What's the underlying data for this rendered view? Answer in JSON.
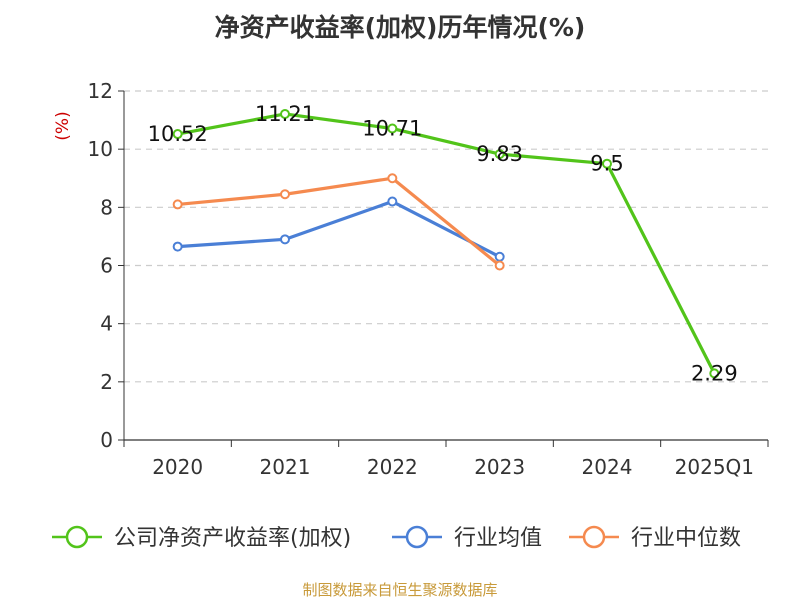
{
  "title": "净资产收益率(加权)历年情况(%)",
  "source": "制图数据来自恒生聚源数据库",
  "colors": {
    "axis": "#333333",
    "grid": "#cccccc",
    "unit": "#cc0000",
    "source": "#c89a3a"
  },
  "chart_data": {
    "type": "line",
    "title": "净资产收益率(加权)历年情况(%)",
    "ylabel": "(%)",
    "categories": [
      "2020",
      "2021",
      "2022",
      "2023",
      "2024",
      "2025Q1"
    ],
    "ylim": [
      0,
      12
    ],
    "yticks": [
      "0",
      "2",
      "4",
      "6",
      "8",
      "10",
      "12"
    ],
    "grid": "horizontal dashed",
    "legend_position": "bottom",
    "series": [
      {
        "name": "公司净资产收益率(加权)",
        "color": "#52c41a",
        "values": [
          10.52,
          11.21,
          10.71,
          9.83,
          9.5,
          2.29
        ],
        "labels": [
          "10.52",
          "11.21",
          "10.71",
          "9.83",
          "9.5",
          "2.29"
        ],
        "show_labels": true
      },
      {
        "name": "行业均值",
        "color": "#4a7fd6",
        "values": [
          6.65,
          6.9,
          8.2,
          6.3,
          null,
          null
        ],
        "show_labels": false
      },
      {
        "name": "行业中位数",
        "color": "#f58a4f",
        "values": [
          8.1,
          8.45,
          9.0,
          6.0,
          null,
          null
        ],
        "show_labels": false
      }
    ]
  }
}
